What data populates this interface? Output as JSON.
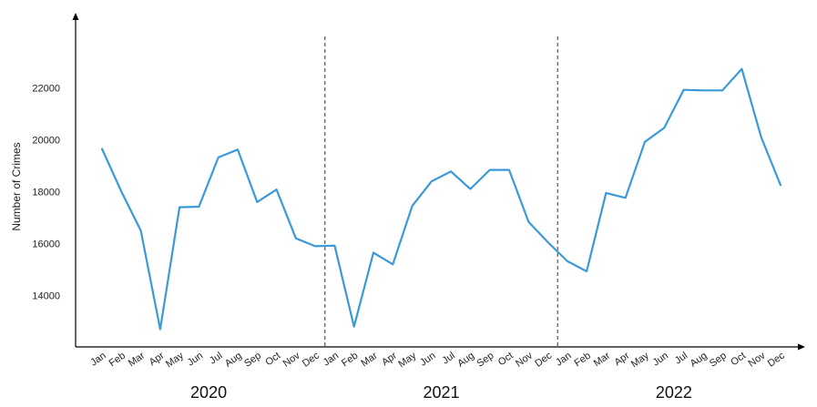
{
  "chart_data": {
    "type": "line",
    "ylabel": "Number of Crimes",
    "xlabel": "",
    "yticks": [
      14000,
      16000,
      18000,
      20000,
      22000
    ],
    "ylim": [
      12300,
      23700
    ],
    "grid": false,
    "line_color": "#3a9ad9",
    "divider_color": "#333333",
    "years": [
      "2020",
      "2021",
      "2022"
    ],
    "months": [
      "Jan",
      "Feb",
      "Mar",
      "Apr",
      "May",
      "Jun",
      "Jul",
      "Aug",
      "Sep",
      "Oct",
      "Nov",
      "Dec"
    ],
    "series": [
      {
        "values": [
          19650,
          18000,
          16500,
          12700,
          17400,
          17420,
          19320,
          19620,
          17600,
          18080,
          16200,
          15900,
          15920,
          12800,
          15650,
          15200,
          17450,
          18400,
          18780,
          18100,
          18840,
          18840,
          16840,
          16050,
          15320,
          14930,
          17950,
          17760,
          19920,
          20460,
          21920,
          21900,
          21900,
          22730,
          20100,
          18250
        ]
      }
    ]
  }
}
